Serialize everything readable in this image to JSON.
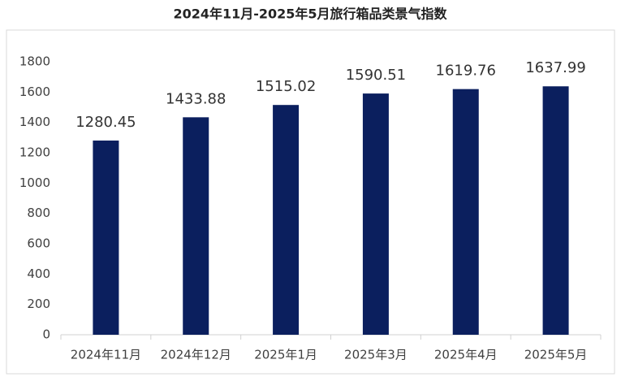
{
  "chart_data": {
    "type": "bar",
    "title": "2024年11月-2025年5月旅行箱品类景气指数",
    "categories": [
      "2024年11月",
      "2024年12月",
      "2025年1月",
      "2025年3月",
      "2025年4月",
      "2025年5月"
    ],
    "values": [
      1280.45,
      1433.88,
      1515.02,
      1590.51,
      1619.76,
      1637.99
    ],
    "color": "#0b1f5e",
    "ylim": [
      0,
      1800
    ],
    "yticks": [
      0,
      200,
      400,
      600,
      800,
      1000,
      1200,
      1400,
      1600,
      1800
    ],
    "grid": false
  }
}
